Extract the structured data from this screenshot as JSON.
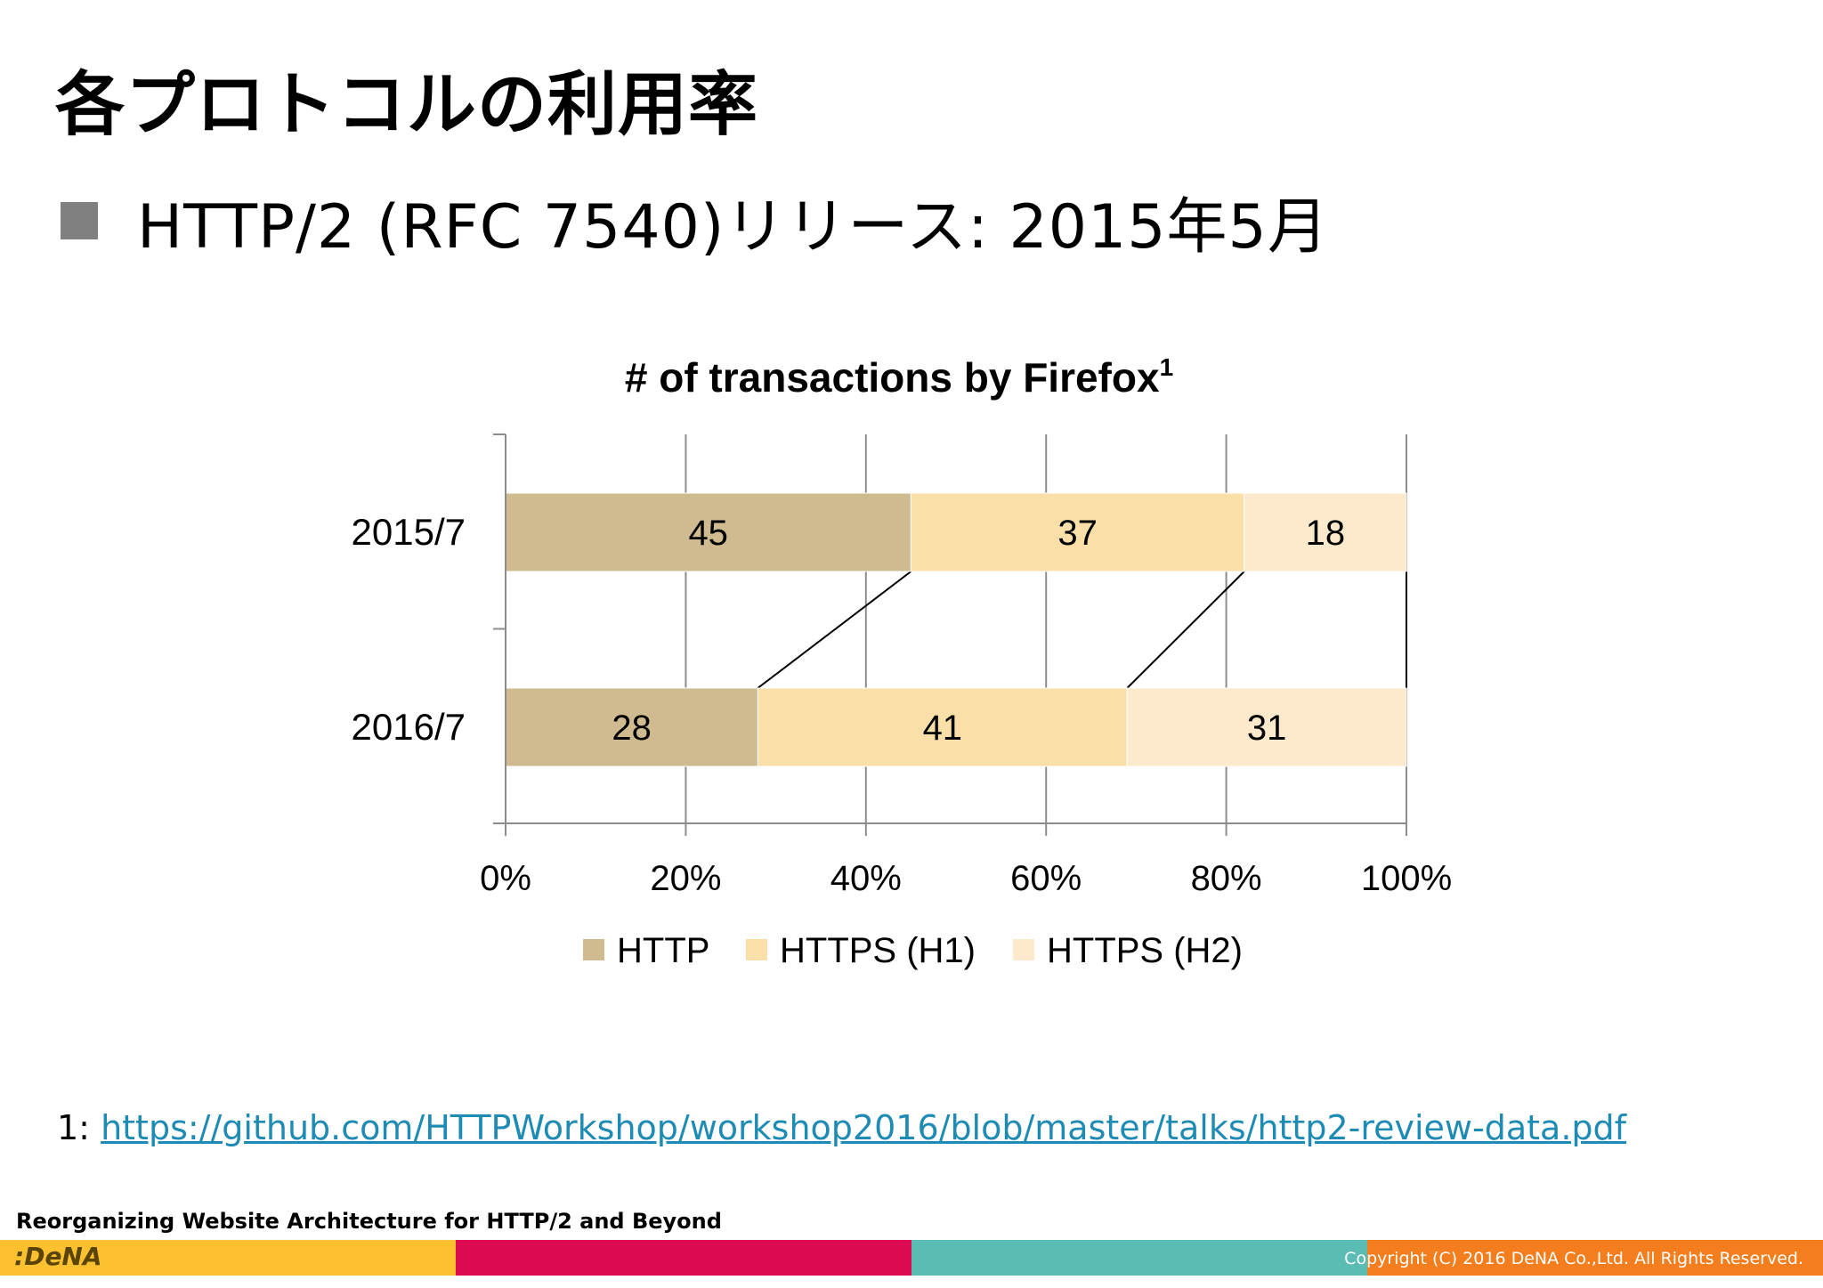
{
  "slide": {
    "title": "各プロトコルの利用率",
    "bullet": "HTTP/2 (RFC 7540)リリース: 2015年5月"
  },
  "chart_data": {
    "type": "bar",
    "orientation": "horizontal",
    "stacked": true,
    "title": "# of transactions by Firefox",
    "title_superscript": "1",
    "categories": [
      "2015/7",
      "2016/7"
    ],
    "series": [
      {
        "name": "HTTP",
        "values": [
          45,
          28
        ],
        "color": "#cfbb8f"
      },
      {
        "name": "HTTPS (H1)",
        "values": [
          37,
          41
        ],
        "color": "#fbdfa8"
      },
      {
        "name": "HTTPS (H2)",
        "values": [
          18,
          31
        ],
        "color": "#fde9cc"
      }
    ],
    "xlim": [
      0,
      100
    ],
    "xticks": [
      "0%",
      "20%",
      "40%",
      "60%",
      "80%",
      "100%"
    ],
    "xlabel": "",
    "ylabel": "",
    "grid": true,
    "legend": "bottom",
    "series_lines": true
  },
  "footnote": {
    "marker": "1:",
    "link": "https://github.com/HTTPWorkshop/workshop2016/blob/master/talks/http2-review-data.pdf"
  },
  "footer": {
    "title": "Reorganizing Website Architecture for HTTP/2 and Beyond",
    "logo": ":DeNA",
    "copyright": "Copyright (C) 2016 DeNA Co.,Ltd. All Rights Reserved.",
    "colors": [
      "#fdc12f",
      "#dc0a50",
      "#5bbbb5",
      "#f47d1d"
    ]
  }
}
